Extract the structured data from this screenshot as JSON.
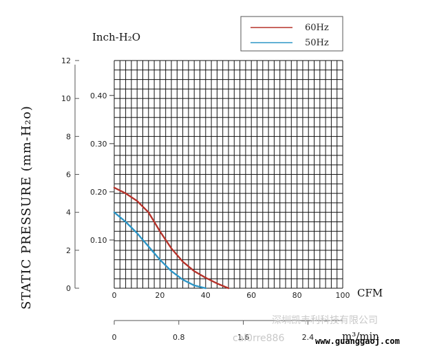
{
  "chart_data": {
    "type": "line",
    "title": "",
    "xlabel": "CFM",
    "ylabel": "STATIC PRESSURE (mm-H₂o)",
    "y2label": "Inch-H₂O",
    "x2label": "m³/min",
    "xlim": [
      0,
      100
    ],
    "ylim": [
      0,
      12
    ],
    "x_ticks": [
      "0",
      "20",
      "40",
      "60",
      "80",
      "100"
    ],
    "y_ticks": [
      "0",
      "2",
      "4",
      "6",
      "8",
      "10",
      "12"
    ],
    "inch_ticks": [
      "0.10",
      "0.20",
      "0.30",
      "0.40"
    ],
    "inch_tick_values": [
      0.1,
      0.2,
      0.3,
      0.4
    ],
    "m3_ticks": [
      "0",
      "0.8",
      "1.6",
      "2.4"
    ],
    "m3_tick_values": [
      0,
      0.8,
      1.6,
      2.4
    ],
    "grid": true,
    "legend_position": "top-right",
    "series": [
      {
        "name": "60Hz",
        "color": "#b5322a",
        "x": [
          0,
          5,
          10,
          15,
          20,
          25,
          30,
          35,
          40,
          45,
          50
        ],
        "y": [
          5.3,
          5.0,
          4.6,
          4.0,
          3.0,
          2.1,
          1.4,
          0.9,
          0.55,
          0.25,
          0
        ]
      },
      {
        "name": "50Hz",
        "color": "#2c95c6",
        "x": [
          0,
          5,
          10,
          15,
          20,
          25,
          30,
          35,
          40
        ],
        "y": [
          4.0,
          3.5,
          2.9,
          2.2,
          1.5,
          0.9,
          0.45,
          0.15,
          0
        ]
      }
    ]
  },
  "watermark": {
    "cn": "深圳凯丰利科技有限公司",
    "en": "cal0rre886",
    "site": "www.guanggaoj.com"
  }
}
